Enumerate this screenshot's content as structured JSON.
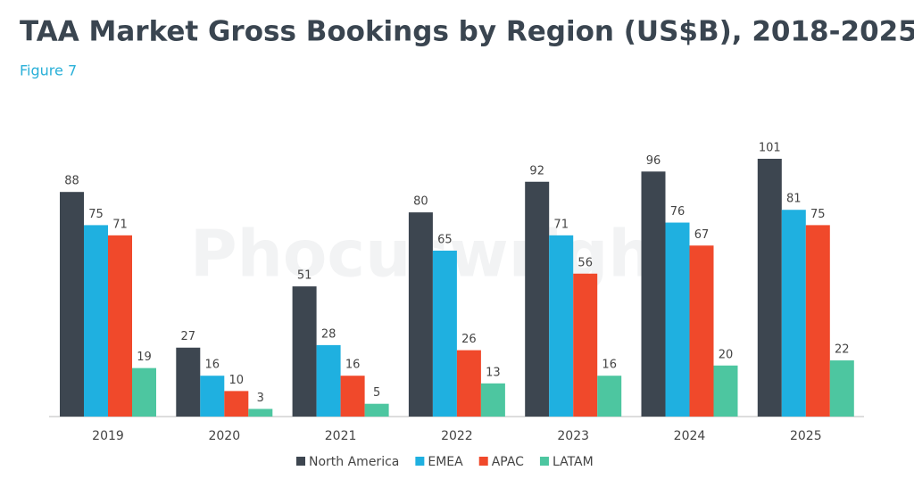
{
  "chart_data": {
    "type": "bar",
    "title": "TAA Market Gross Bookings by Region (US$B), 2018-2025",
    "subtitle": "Figure 7",
    "watermark": "Phocuswright",
    "categories": [
      "2019",
      "2020",
      "2021",
      "2022",
      "2023",
      "2024",
      "2025"
    ],
    "series": [
      {
        "name": "North America",
        "color": "#3d4650",
        "values": [
          88,
          27,
          51,
          80,
          92,
          96,
          101
        ]
      },
      {
        "name": "EMEA",
        "color": "#1fb0e0",
        "values": [
          75,
          16,
          28,
          65,
          71,
          76,
          81
        ]
      },
      {
        "name": "APAC",
        "color": "#f0492b",
        "values": [
          71,
          10,
          16,
          26,
          56,
          67,
          75
        ]
      },
      {
        "name": "LATAM",
        "color": "#4dc6a0",
        "values": [
          19,
          3,
          5,
          13,
          16,
          20,
          22
        ]
      }
    ]
  }
}
